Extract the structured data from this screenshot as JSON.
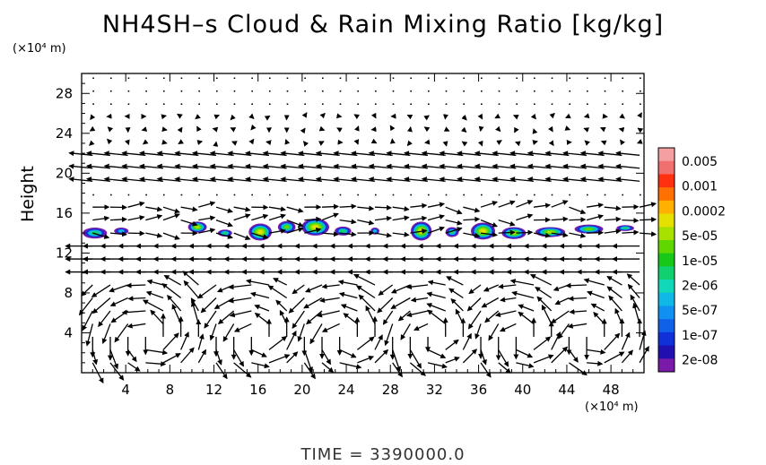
{
  "chart_data": {
    "type": "heatmap",
    "title": "NH4SH–s Cloud & Rain Mixing Ratio [kg/kg]",
    "ylabel": "Height",
    "y_unit": "(×10⁴ m)",
    "x_unit": "(×10⁴ m)",
    "footer": "TIME = 3390000.0",
    "xlim": [
      0,
      51
    ],
    "ylim": [
      0,
      30
    ],
    "x_ticks": [
      4,
      8,
      12,
      16,
      20,
      24,
      28,
      32,
      36,
      40,
      44,
      48
    ],
    "y_ticks": [
      4,
      8,
      12,
      16,
      20,
      24,
      28
    ],
    "x_tick_labels": [
      "4",
      "8",
      "12",
      "16",
      "20",
      "24",
      "28",
      "32",
      "36",
      "40",
      "44",
      "48"
    ],
    "y_tick_labels": [
      "4",
      "8",
      "12",
      "16",
      "20",
      "24",
      "28"
    ],
    "colorbar": {
      "labels": [
        "0.005",
        "0.001",
        "0.0002",
        "5e-05",
        "1e-05",
        "2e-06",
        "5e-07",
        "1e-07",
        "2e-08"
      ],
      "colors": [
        "#f4a0a0",
        "#f07070",
        "#ff3010",
        "#ff7000",
        "#ffb000",
        "#e6e000",
        "#a8e000",
        "#60d800",
        "#18c818",
        "#10d070",
        "#10d8b8",
        "#10b8e8",
        "#1090f0",
        "#1060e8",
        "#1030d8",
        "#2010b0",
        "#7a1aa8"
      ]
    },
    "cloud_blobs": [
      {
        "x": 1.2,
        "y": 14.0,
        "w": 2.2,
        "h": 1.1,
        "level": 2
      },
      {
        "x": 3.6,
        "y": 14.2,
        "w": 1.3,
        "h": 0.7,
        "level": 1
      },
      {
        "x": 10.5,
        "y": 14.6,
        "w": 1.7,
        "h": 1.1,
        "level": 4
      },
      {
        "x": 13.0,
        "y": 14.0,
        "w": 1.3,
        "h": 0.7,
        "level": 2
      },
      {
        "x": 16.2,
        "y": 14.1,
        "w": 2.1,
        "h": 1.7,
        "level": 5
      },
      {
        "x": 18.6,
        "y": 14.6,
        "w": 1.6,
        "h": 1.2,
        "level": 3
      },
      {
        "x": 21.2,
        "y": 14.6,
        "w": 2.5,
        "h": 1.7,
        "level": 5
      },
      {
        "x": 23.7,
        "y": 14.2,
        "w": 1.5,
        "h": 0.9,
        "level": 2
      },
      {
        "x": 26.6,
        "y": 14.2,
        "w": 0.8,
        "h": 0.7,
        "level": 1
      },
      {
        "x": 30.8,
        "y": 14.2,
        "w": 1.9,
        "h": 1.9,
        "level": 5
      },
      {
        "x": 33.6,
        "y": 14.1,
        "w": 1.2,
        "h": 1.0,
        "level": 2
      },
      {
        "x": 36.4,
        "y": 14.2,
        "w": 2.2,
        "h": 1.7,
        "level": 5
      },
      {
        "x": 39.2,
        "y": 14.0,
        "w": 2.2,
        "h": 1.2,
        "level": 4
      },
      {
        "x": 42.5,
        "y": 14.1,
        "w": 2.7,
        "h": 1.0,
        "level": 4
      },
      {
        "x": 46.0,
        "y": 14.4,
        "w": 2.6,
        "h": 0.9,
        "level": 3
      },
      {
        "x": 49.3,
        "y": 14.5,
        "w": 1.6,
        "h": 0.6,
        "level": 2
      }
    ]
  }
}
